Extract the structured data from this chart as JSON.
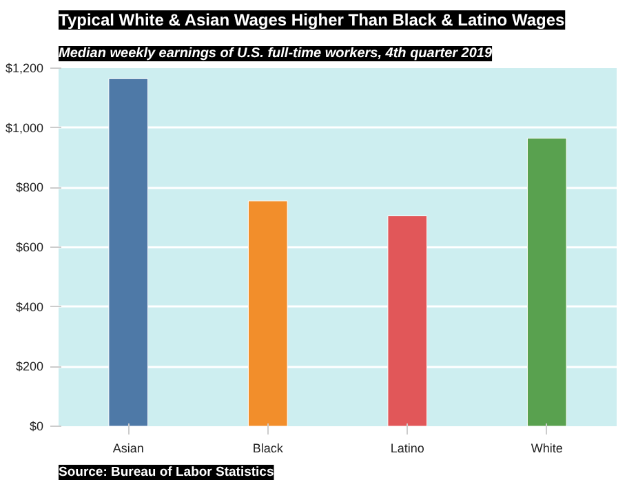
{
  "chart_data": {
    "type": "bar",
    "title": "Typical White & Asian Wages Higher Than Black & Latino Wages",
    "subtitle": "Median weekly earnings of U.S. full-time workers, 4th quarter 2019",
    "categories": [
      "Asian",
      "Black",
      "Latino",
      "White"
    ],
    "values": [
      1165,
      755,
      705,
      965
    ],
    "colors": [
      "#4e79a7",
      "#f28e2b",
      "#e15759",
      "#59a14f"
    ],
    "ylim": [
      0,
      1200
    ],
    "yticks": [
      {
        "value": 0,
        "label": "$0"
      },
      {
        "value": 200,
        "label": "$200"
      },
      {
        "value": 400,
        "label": "$400"
      },
      {
        "value": 600,
        "label": "$600"
      },
      {
        "value": 800,
        "label": "$800"
      },
      {
        "value": 1000,
        "label": "$1,000"
      },
      {
        "value": 1200,
        "label": "$1,200"
      }
    ],
    "grid": "y",
    "annotations": [
      "Source: Bureau of Labor Statistics"
    ]
  }
}
